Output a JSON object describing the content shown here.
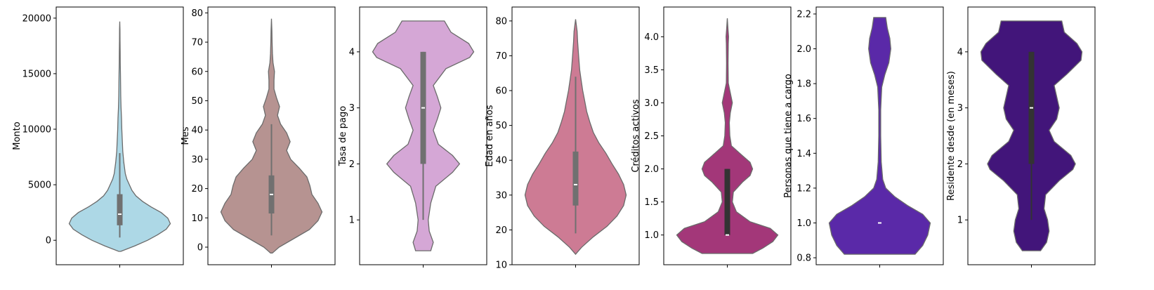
{
  "chart_data": [
    {
      "type": "violin",
      "ylabel": "Monto",
      "ylim": [
        -2200,
        21000
      ],
      "yticks": [
        0,
        5000,
        10000,
        15000,
        20000
      ],
      "color": "#add8e6",
      "violin_range": [
        -1000,
        19700
      ],
      "density": [
        [
          -1000,
          0.02
        ],
        [
          -500,
          0.3
        ],
        [
          0,
          0.55
        ],
        [
          500,
          0.75
        ],
        [
          1000,
          0.92
        ],
        [
          1500,
          1.0
        ],
        [
          2000,
          0.95
        ],
        [
          2500,
          0.82
        ],
        [
          3000,
          0.62
        ],
        [
          3500,
          0.45
        ],
        [
          4000,
          0.32
        ],
        [
          4500,
          0.24
        ],
        [
          5000,
          0.19
        ],
        [
          5500,
          0.14
        ],
        [
          6000,
          0.11
        ],
        [
          7000,
          0.08
        ],
        [
          8000,
          0.06
        ],
        [
          9000,
          0.05
        ],
        [
          10000,
          0.04
        ],
        [
          11000,
          0.035
        ],
        [
          12000,
          0.025
        ],
        [
          13000,
          0.02
        ],
        [
          14000,
          0.017
        ],
        [
          15000,
          0.014
        ],
        [
          16000,
          0.01
        ],
        [
          17000,
          0.008
        ],
        [
          18000,
          0.006
        ],
        [
          19000,
          0.004
        ],
        [
          19700,
          0.0
        ]
      ],
      "box": {
        "q1": 1350,
        "median": 2350,
        "q3": 4150,
        "whisker_low": 250,
        "whisker_high": 7850
      }
    },
    {
      "type": "violin",
      "ylabel": "Mes",
      "ylim": [
        -6,
        82
      ],
      "yticks": [
        0,
        10,
        20,
        30,
        40,
        50,
        60,
        70,
        80
      ],
      "color": "#b69391",
      "violin_range": [
        -2,
        78
      ],
      "density": [
        [
          -2,
          0.02
        ],
        [
          0,
          0.15
        ],
        [
          3,
          0.45
        ],
        [
          6,
          0.75
        ],
        [
          9,
          0.92
        ],
        [
          12,
          1.0
        ],
        [
          15,
          0.92
        ],
        [
          18,
          0.8
        ],
        [
          21,
          0.76
        ],
        [
          24,
          0.7
        ],
        [
          27,
          0.55
        ],
        [
          30,
          0.38
        ],
        [
          33,
          0.3
        ],
        [
          36,
          0.37
        ],
        [
          39,
          0.3
        ],
        [
          42,
          0.18
        ],
        [
          45,
          0.12
        ],
        [
          48,
          0.16
        ],
        [
          51,
          0.1
        ],
        [
          54,
          0.05
        ],
        [
          57,
          0.05
        ],
        [
          60,
          0.06
        ],
        [
          63,
          0.03
        ],
        [
          66,
          0.02
        ],
        [
          70,
          0.012
        ],
        [
          74,
          0.008
        ],
        [
          78,
          0.0
        ]
      ],
      "box": {
        "q1": 11.5,
        "median": 18,
        "q3": 24.5,
        "whisker_low": 4,
        "whisker_high": 42
      }
    },
    {
      "type": "violin",
      "ylabel": "Tasa de pago",
      "ylim": [
        0.2,
        4.8
      ],
      "yticks": [
        1,
        2,
        3,
        4
      ],
      "color": "#d5a7d6",
      "violin_range": [
        0.45,
        4.55
      ],
      "density": [
        [
          0.45,
          0.15
        ],
        [
          0.6,
          0.2
        ],
        [
          0.8,
          0.12
        ],
        [
          1.0,
          0.1
        ],
        [
          1.3,
          0.15
        ],
        [
          1.6,
          0.25
        ],
        [
          1.85,
          0.58
        ],
        [
          2.0,
          0.72
        ],
        [
          2.15,
          0.58
        ],
        [
          2.35,
          0.3
        ],
        [
          2.6,
          0.2
        ],
        [
          2.8,
          0.28
        ],
        [
          3.0,
          0.35
        ],
        [
          3.2,
          0.28
        ],
        [
          3.4,
          0.2
        ],
        [
          3.7,
          0.45
        ],
        [
          3.9,
          0.92
        ],
        [
          4.0,
          1.0
        ],
        [
          4.15,
          0.9
        ],
        [
          4.35,
          0.55
        ],
        [
          4.55,
          0.42
        ]
      ],
      "box": {
        "q1": 2.0,
        "median": 3.0,
        "q3": 4.0,
        "whisker_low": 1.0,
        "whisker_high": 4.0
      }
    },
    {
      "type": "violin",
      "ylabel": "Edad en años",
      "ylim": [
        10,
        84
      ],
      "yticks": [
        10,
        20,
        30,
        40,
        50,
        60,
        70,
        80
      ],
      "color": "#cd7b94",
      "violin_range": [
        13,
        80.5
      ],
      "density": [
        [
          13,
          0.0
        ],
        [
          15,
          0.12
        ],
        [
          18,
          0.35
        ],
        [
          21,
          0.62
        ],
        [
          24,
          0.82
        ],
        [
          27,
          0.95
        ],
        [
          30,
          1.0
        ],
        [
          33,
          0.95
        ],
        [
          36,
          0.85
        ],
        [
          39,
          0.72
        ],
        [
          42,
          0.6
        ],
        [
          45,
          0.46
        ],
        [
          48,
          0.35
        ],
        [
          51,
          0.28
        ],
        [
          54,
          0.22
        ],
        [
          57,
          0.18
        ],
        [
          60,
          0.14
        ],
        [
          63,
          0.11
        ],
        [
          66,
          0.08
        ],
        [
          70,
          0.06
        ],
        [
          74,
          0.04
        ],
        [
          77,
          0.03
        ],
        [
          80.5,
          0.0
        ]
      ],
      "box": {
        "q1": 27,
        "median": 33,
        "q3": 42.5,
        "whisker_low": 19,
        "whisker_high": 64
      }
    },
    {
      "type": "violin",
      "ylabel": "Créditos activos",
      "ylim": [
        0.55,
        4.45
      ],
      "yticks": [
        1.0,
        1.5,
        2.0,
        2.5,
        3.0,
        3.5,
        4.0
      ],
      "color": "#a33779",
      "violin_range": [
        0.72,
        4.28
      ],
      "density": [
        [
          0.72,
          0.5
        ],
        [
          0.8,
          0.7
        ],
        [
          0.9,
          0.9
        ],
        [
          1.0,
          1.0
        ],
        [
          1.1,
          0.85
        ],
        [
          1.2,
          0.45
        ],
        [
          1.35,
          0.18
        ],
        [
          1.5,
          0.1
        ],
        [
          1.65,
          0.12
        ],
        [
          1.8,
          0.3
        ],
        [
          1.9,
          0.45
        ],
        [
          2.0,
          0.5
        ],
        [
          2.1,
          0.45
        ],
        [
          2.2,
          0.3
        ],
        [
          2.35,
          0.08
        ],
        [
          2.5,
          0.05
        ],
        [
          2.7,
          0.04
        ],
        [
          2.85,
          0.06
        ],
        [
          3.0,
          0.1
        ],
        [
          3.15,
          0.06
        ],
        [
          3.3,
          0.02
        ],
        [
          3.6,
          0.015
        ],
        [
          3.9,
          0.02
        ],
        [
          4.0,
          0.025
        ],
        [
          4.1,
          0.015
        ],
        [
          4.28,
          0.0
        ]
      ],
      "box": {
        "q1": 1.0,
        "median": 1.0,
        "q3": 2.0,
        "whisker_low": 1.0,
        "whisker_high": 2.0
      }
    },
    {
      "type": "violin",
      "ylabel": "Personas que tiene a cargo",
      "ylim": [
        0.76,
        2.24
      ],
      "yticks": [
        0.8,
        1.0,
        1.2,
        1.4,
        1.6,
        1.8,
        2.0,
        2.2
      ],
      "color": "#5a29a8",
      "violin_range": [
        0.82,
        2.18
      ],
      "density": [
        [
          0.82,
          0.7
        ],
        [
          0.87,
          0.85
        ],
        [
          0.93,
          0.95
        ],
        [
          1.0,
          1.0
        ],
        [
          1.05,
          0.85
        ],
        [
          1.1,
          0.55
        ],
        [
          1.15,
          0.3
        ],
        [
          1.2,
          0.12
        ],
        [
          1.25,
          0.06
        ],
        [
          1.35,
          0.03
        ],
        [
          1.5,
          0.02
        ],
        [
          1.65,
          0.02
        ],
        [
          1.78,
          0.04
        ],
        [
          1.85,
          0.1
        ],
        [
          1.92,
          0.18
        ],
        [
          2.0,
          0.22
        ],
        [
          2.06,
          0.2
        ],
        [
          2.12,
          0.15
        ],
        [
          2.18,
          0.12
        ]
      ],
      "box": {
        "q1": 1.0,
        "median": 1.0,
        "q3": 1.0,
        "whisker_low": 1.0,
        "whisker_high": 1.0
      }
    },
    {
      "type": "violin",
      "ylabel": "Residente desde (en meses)",
      "ylim": [
        0.2,
        4.8
      ],
      "yticks": [
        1,
        2,
        3,
        4
      ],
      "color": "#42157a",
      "violin_range": [
        0.45,
        4.55
      ],
      "density": [
        [
          0.45,
          0.18
        ],
        [
          0.6,
          0.3
        ],
        [
          0.8,
          0.35
        ],
        [
          1.0,
          0.32
        ],
        [
          1.2,
          0.25
        ],
        [
          1.45,
          0.28
        ],
        [
          1.7,
          0.55
        ],
        [
          1.9,
          0.82
        ],
        [
          2.0,
          0.87
        ],
        [
          2.15,
          0.78
        ],
        [
          2.4,
          0.45
        ],
        [
          2.6,
          0.35
        ],
        [
          2.8,
          0.5
        ],
        [
          3.0,
          0.55
        ],
        [
          3.2,
          0.5
        ],
        [
          3.4,
          0.45
        ],
        [
          3.6,
          0.7
        ],
        [
          3.85,
          0.98
        ],
        [
          4.0,
          1.0
        ],
        [
          4.15,
          0.9
        ],
        [
          4.35,
          0.65
        ],
        [
          4.55,
          0.6
        ]
      ],
      "box": {
        "q1": 2.0,
        "median": 3.0,
        "q3": 4.0,
        "whisker_low": 1.0,
        "whisker_high": 4.0
      }
    }
  ]
}
